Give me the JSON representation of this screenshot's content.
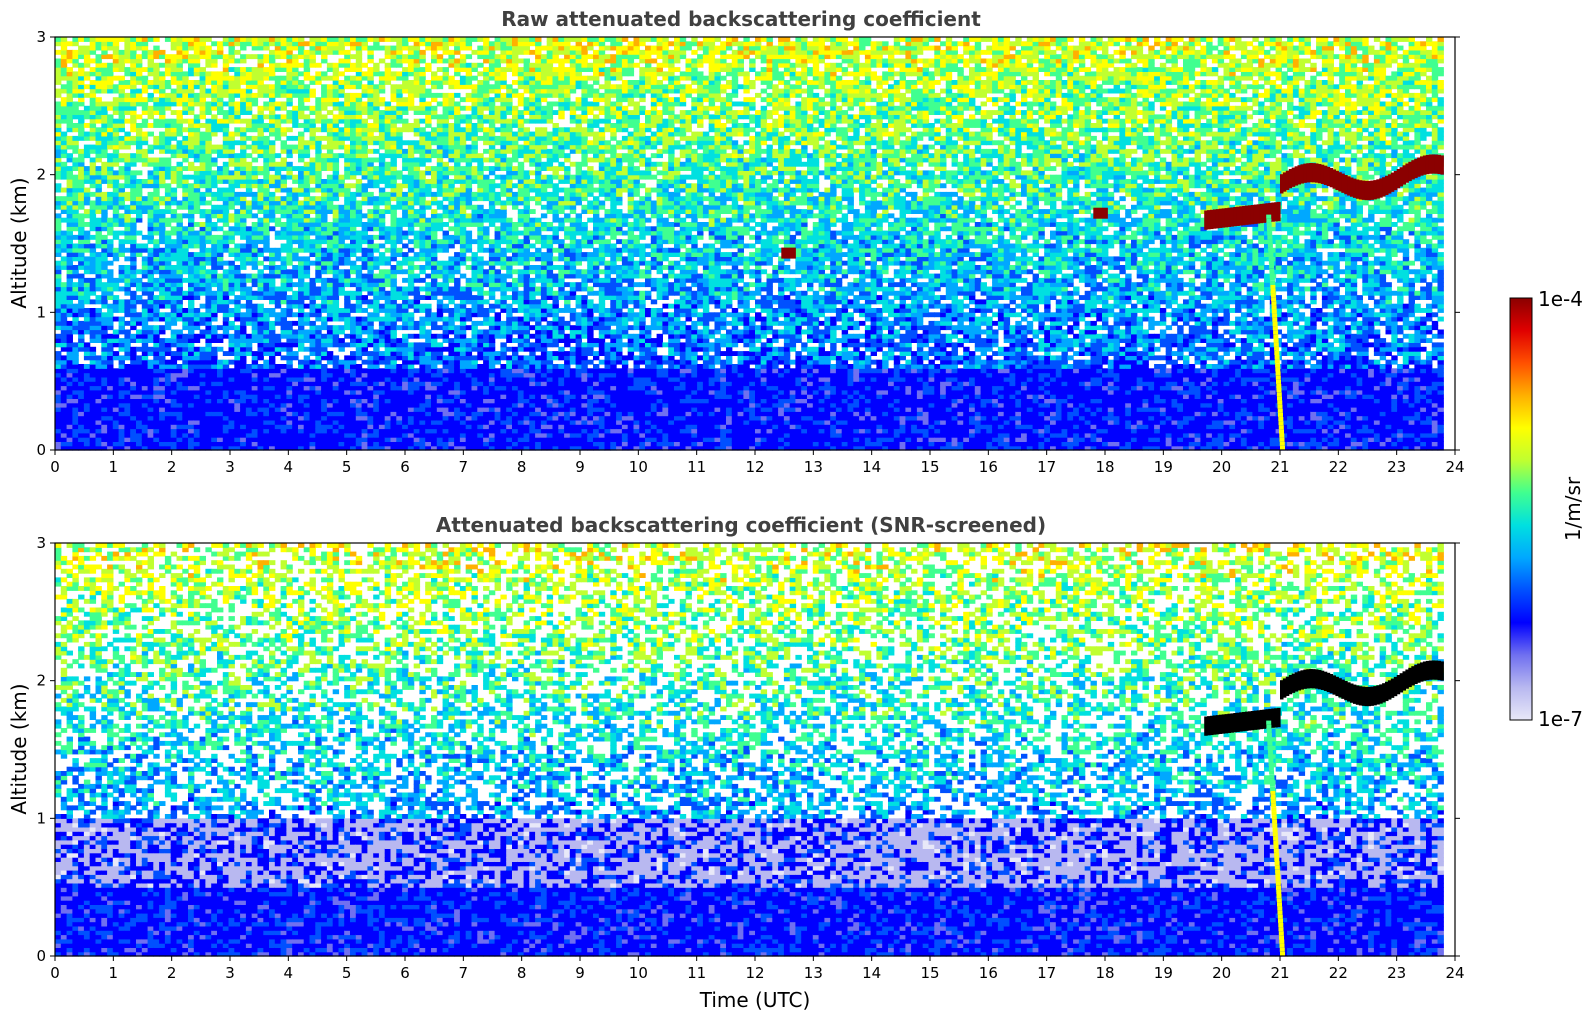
{
  "chart_data": [
    {
      "type": "heatmap",
      "title": "Raw attenuated backscattering coefficient",
      "xlabel": "",
      "ylabel": "Altitude (km)",
      "xlim": [
        0,
        24
      ],
      "ylim": [
        0,
        3
      ],
      "x_ticks": [
        "0",
        "1",
        "2",
        "3",
        "4",
        "5",
        "6",
        "7",
        "8",
        "9",
        "10",
        "11",
        "12",
        "13",
        "14",
        "15",
        "16",
        "17",
        "18",
        "19",
        "20",
        "21",
        "22",
        "23",
        "24"
      ],
      "y_ticks": [
        "0",
        "1",
        "2",
        "3"
      ],
      "x_data_end": 23.8,
      "colormap": "jet (log scale)",
      "features": {
        "surface_layer": {
          "altitude_km": [
            0,
            0.6
          ],
          "level": "low (blue)"
        },
        "background_aloft": {
          "altitude_km": [
            0.6,
            3.0
          ],
          "level": "noisy, cyan-yellow"
        },
        "cloud_layer": {
          "time_utc": [
            19.7,
            23.8
          ],
          "altitude_km": [
            1.6,
            2.2
          ],
          "level": "high (dark red)"
        },
        "precipitation_fall_streak": {
          "time_utc": [
            20.6,
            21.0
          ],
          "altitude_km": [
            0,
            1.7
          ]
        },
        "isolated_cloud_patches": [
          {
            "time_utc": 17.9,
            "altitude_km": 1.72
          },
          {
            "time_utc": 12.55,
            "altitude_km": 1.43
          }
        ]
      }
    },
    {
      "type": "heatmap",
      "title": "Attenuated backscattering coefficient (SNR-screened)",
      "xlabel": "Time (UTC)",
      "ylabel": "Altitude (km)",
      "xlim": [
        0,
        24
      ],
      "ylim": [
        0,
        3
      ],
      "x_ticks": [
        "0",
        "1",
        "2",
        "3",
        "4",
        "5",
        "6",
        "7",
        "8",
        "9",
        "10",
        "11",
        "12",
        "13",
        "14",
        "15",
        "16",
        "17",
        "18",
        "19",
        "20",
        "21",
        "22",
        "23",
        "24"
      ],
      "y_ticks": [
        "0",
        "1",
        "2",
        "3"
      ],
      "x_data_end": 23.8,
      "colormap": "jet (log scale)",
      "features": {
        "surface_layer": {
          "altitude_km": [
            0,
            0.5
          ],
          "level": "low (blue)"
        },
        "screened_region": {
          "altitude_km": [
            0.5,
            1.0
          ],
          "level": "white / pale"
        },
        "background_aloft": {
          "altitude_km": [
            1.0,
            3.0
          ],
          "level": "sparse cyan-yellow"
        },
        "cloud_layer": {
          "time_utc": [
            19.7,
            23.8
          ],
          "altitude_km": [
            1.6,
            2.2
          ],
          "level": "saturated (black)"
        },
        "precipitation_fall_streak": {
          "time_utc": [
            20.6,
            21.0
          ],
          "altitude_km": [
            0,
            1.7
          ]
        }
      }
    }
  ],
  "colorbar": {
    "label": "1/m/sr",
    "max_label": "1e-4",
    "min_label": "1e-7",
    "range": [
      1e-07,
      0.0001
    ],
    "scale": "log",
    "colors": [
      "#e8e8f8",
      "#b8b8f0",
      "#7070f0",
      "#0000ff",
      "#0050ff",
      "#00a8ff",
      "#00e0e0",
      "#40ff90",
      "#c0ff30",
      "#ffff00",
      "#ffb000",
      "#ff5000",
      "#e00000",
      "#8b0000"
    ]
  }
}
